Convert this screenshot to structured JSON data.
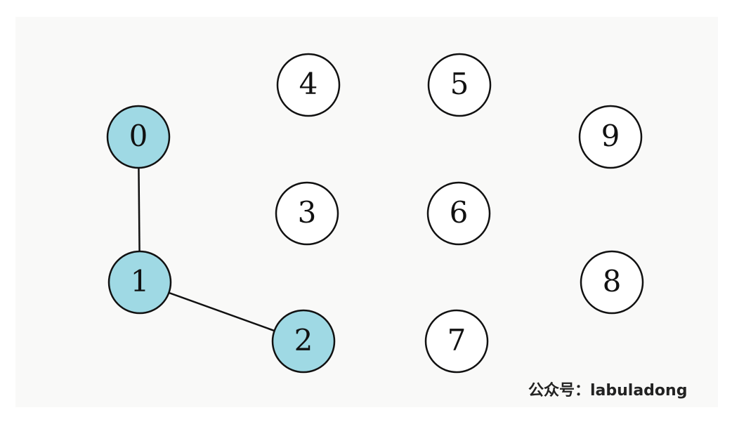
{
  "graph": {
    "nodes": [
      {
        "id": "0",
        "label": "0",
        "highlighted": true
      },
      {
        "id": "1",
        "label": "1",
        "highlighted": true
      },
      {
        "id": "2",
        "label": "2",
        "highlighted": true
      },
      {
        "id": "3",
        "label": "3",
        "highlighted": false
      },
      {
        "id": "4",
        "label": "4",
        "highlighted": false
      },
      {
        "id": "5",
        "label": "5",
        "highlighted": false
      },
      {
        "id": "6",
        "label": "6",
        "highlighted": false
      },
      {
        "id": "7",
        "label": "7",
        "highlighted": false
      },
      {
        "id": "8",
        "label": "8",
        "highlighted": false
      },
      {
        "id": "9",
        "label": "9",
        "highlighted": false
      }
    ],
    "edges": [
      {
        "from": "0",
        "to": "1"
      },
      {
        "from": "1",
        "to": "2"
      }
    ]
  },
  "colors": {
    "highlight_fill": "#9fd9e4",
    "plain_fill": "#ffffff",
    "stroke": "#111111",
    "background": "#f9f9f8"
  },
  "watermark": {
    "text": "公众号：labuladong"
  }
}
